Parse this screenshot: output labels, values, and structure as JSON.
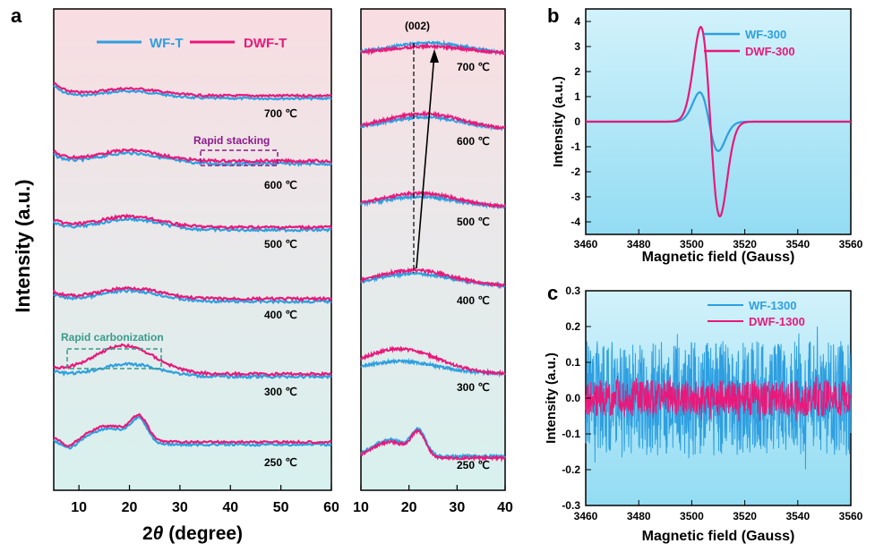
{
  "panel_letters": [
    "a",
    "b",
    "c"
  ],
  "colors": {
    "wf": "#2e9fe0",
    "dwf": "#e8197a",
    "stack": "#8b1a8b",
    "carb": "#3a9a8a"
  },
  "panel_a": {
    "ylabel": "Intensity (a.u.)",
    "xlabel_theta": "θ",
    "xlabel_prefix": "2",
    "xlabel_suffix": " (degree)",
    "legend": [
      "WF-T",
      "DWF-T"
    ],
    "temperatures": [
      "700 ℃",
      "600 ℃",
      "500 ℃",
      "400 ℃",
      "300 ℃",
      "250 ℃"
    ],
    "annotations": {
      "rapid_stacking": "Rapid stacking",
      "rapid_carbonization": "Rapid carbonization",
      "peak": "(002)"
    },
    "left_xticks": [
      "10",
      "20",
      "30",
      "40",
      "50",
      "60"
    ],
    "right_xticks": [
      "10",
      "20",
      "30",
      "40"
    ]
  },
  "chart_data": [
    {
      "type": "line",
      "panel": "a (left)",
      "xlabel": "2θ (degree)",
      "ylabel": "Intensity (a.u.)",
      "xlim": [
        5,
        60
      ],
      "series": [
        {
          "name": "WF-T",
          "offsets_by_temperature": [
            "700 ℃",
            "600 ℃",
            "500 ℃",
            "400 ℃",
            "300 ℃",
            "250 ℃"
          ]
        },
        {
          "name": "DWF-T",
          "offsets_by_temperature": [
            "700 ℃",
            "600 ℃",
            "500 ℃",
            "400 ℃",
            "300 ℃",
            "250 ℃"
          ]
        }
      ],
      "peak_positions_deg": [
        16,
        22
      ]
    },
    {
      "type": "line",
      "panel": "a (right)",
      "xlabel": "2θ (degree)",
      "xlim": [
        10,
        40
      ],
      "peak_label": "(002)",
      "peak_position_deg": [
        21,
        24
      ]
    },
    {
      "type": "line",
      "panel": "b",
      "xlabel": "Magnetic field (Gauss)",
      "ylabel": "Intensity (a.u.)",
      "xlim": [
        3460,
        3560
      ],
      "ylim": [
        -4.5,
        4.5
      ],
      "xticks": [
        3460,
        3480,
        3500,
        3520,
        3540,
        3560
      ],
      "yticks": [
        -4,
        -3,
        -2,
        -1,
        0,
        1,
        2,
        3,
        4
      ],
      "legend_position": "top-right",
      "series": [
        {
          "name": "WF-300",
          "center": 3506.5,
          "extrema": [
            [
              3503,
              1.15
            ],
            [
              3510,
              -1.2
            ]
          ]
        },
        {
          "name": "DWF-300",
          "center": 3507,
          "extrema": [
            [
              3503.5,
              3.7
            ],
            [
              3510.5,
              -3.85
            ]
          ]
        }
      ]
    },
    {
      "type": "line",
      "panel": "c",
      "xlabel": "Magnetic field (Gauss)",
      "ylabel": "Intensity (a.u.)",
      "xlim": [
        3460,
        3560
      ],
      "ylim": [
        -0.3,
        0.3
      ],
      "xticks": [
        3460,
        3480,
        3500,
        3520,
        3540,
        3560
      ],
      "yticks": [
        -0.3,
        -0.2,
        -0.1,
        0.0,
        0.1,
        0.2,
        0.3
      ],
      "legend_position": "top-right",
      "series": [
        {
          "name": "WF-1300",
          "noise_amplitude": 0.18
        },
        {
          "name": "DWF-1300",
          "noise_amplitude": 0.06
        }
      ]
    }
  ],
  "panel_b": {
    "xlabel": "Magnetic field (Gauss)",
    "ylabel": "Intensity (a.u.)",
    "xticks": [
      "3460",
      "3480",
      "3500",
      "3520",
      "3540",
      "3560"
    ],
    "yticks": [
      "-4",
      "-3",
      "-2",
      "-1",
      "0",
      "1",
      "2",
      "3",
      "4"
    ],
    "legend": [
      "WF-300",
      "DWF-300"
    ]
  },
  "panel_c": {
    "xlabel": "Magnetic field (Gauss)",
    "ylabel": "Intensity (a.u.)",
    "xticks": [
      "3460",
      "3480",
      "3500",
      "3520",
      "3540",
      "3560"
    ],
    "yticks": [
      "-0.3",
      "-0.2",
      "-0.1",
      "0.0",
      "0.1",
      "0.2",
      "0.3"
    ],
    "legend": [
      "WF-1300",
      "DWF-1300"
    ]
  }
}
